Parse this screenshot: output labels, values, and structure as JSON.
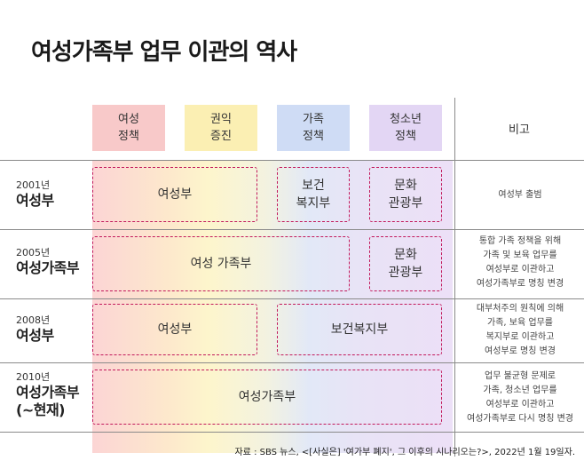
{
  "title": "여성가족부 업무 이관의 역사",
  "columns": [
    {
      "line1": "여성",
      "line2": "정책",
      "color": "#f8c9c9"
    },
    {
      "line1": "권익",
      "line2": "증진",
      "color": "#fbefb3"
    },
    {
      "line1": "가족",
      "line2": "정책",
      "color": "#cfdcf5"
    },
    {
      "line1": "청소년",
      "line2": "정책",
      "color": "#e3d6f4"
    }
  ],
  "note_header": "비고",
  "rows": [
    {
      "year": "2001년",
      "name": "여성부",
      "boxes": [
        {
          "line1": "여성부",
          "line2": ""
        },
        {
          "line1": "보건",
          "line2": "복지부"
        },
        {
          "line1": "문화",
          "line2": "관광부"
        }
      ],
      "note": [
        "여성부 출범"
      ]
    },
    {
      "year": "2005년",
      "name": "여성가족부",
      "boxes": [
        {
          "line1": "여성 가족부",
          "line2": ""
        },
        {
          "line1": "문화",
          "line2": "관광부"
        }
      ],
      "note": [
        "통합 가족 정책을 위해",
        "가족 및 보육 업무를",
        "여성부로 이관하고",
        "여성가족부로 명칭 변경"
      ]
    },
    {
      "year": "2008년",
      "name": "여성부",
      "boxes": [
        {
          "line1": "여성부",
          "line2": ""
        },
        {
          "line1": "보건복지부",
          "line2": ""
        }
      ],
      "note": [
        "대부처주의 원칙에 의해",
        "가족, 보육 업무를",
        "복지부로 이관하고",
        "여성부로 명칭 변경"
      ]
    },
    {
      "year": "2010년",
      "name": "여성가족부",
      "name2": "(~현재)",
      "boxes": [
        {
          "line1": "여성가족부",
          "line2": ""
        }
      ],
      "note": [
        "업무 불균형 문제로",
        "가족, 청소년 업무를",
        "여성부로 이관하고",
        "여성가족부로 다시 명칭 변경"
      ]
    }
  ],
  "source": "자료 : SBS 뉴스, <[사실은] '여가부 폐지', 그 이후의 시나리오는?>, 2022년 1월 19일자."
}
